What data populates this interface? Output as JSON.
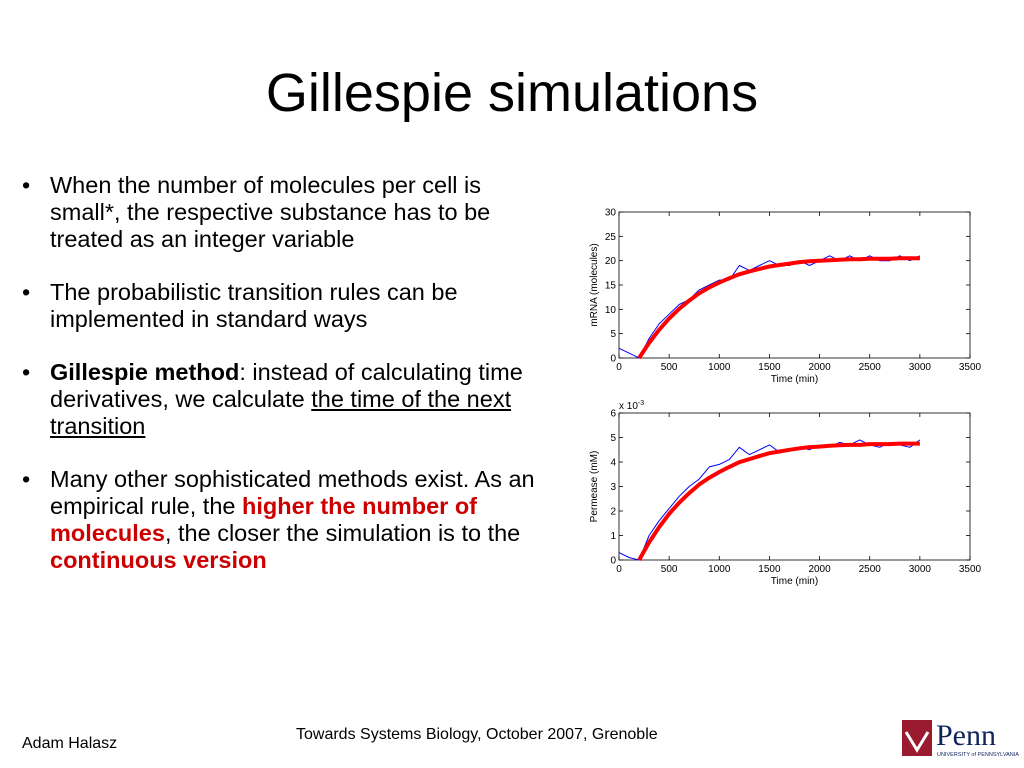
{
  "title": "Gillespie simulations",
  "bullets": [
    {
      "runs": [
        {
          "text": "When the number of molecules per cell is small*, the respective substance has to be treated as an integer variable",
          "style": "plain"
        }
      ]
    },
    {
      "runs": [
        {
          "text": "The probabilistic transition rules can be implemented in standard ways",
          "style": "plain"
        }
      ]
    },
    {
      "runs": [
        {
          "text": "Gillespie method",
          "style": "bold"
        },
        {
          "text": ": instead of calculating time derivatives, we calculate ",
          "style": "plain"
        },
        {
          "text": "the time of the next transition",
          "style": "underline"
        }
      ]
    },
    {
      "runs": [
        {
          "text": "Many other sophisticated methods exist. As an empirical rule, the ",
          "style": "plain"
        },
        {
          "text": "higher the number of molecules",
          "style": "red-bold"
        },
        {
          "text": ", the closer the simulation is to the ",
          "style": "plain"
        },
        {
          "text": "continuous version",
          "style": "red-bold"
        }
      ]
    }
  ],
  "charts": [
    {
      "type": "line",
      "xlabel": "Time (min)",
      "ylabel": "mRNA (molecules)",
      "xlim": [
        0,
        3500
      ],
      "xticks": [
        0,
        500,
        1000,
        1500,
        2000,
        2500,
        3000,
        3500
      ],
      "ylim": [
        0,
        30
      ],
      "yticks": [
        0,
        5,
        10,
        15,
        20,
        25,
        30
      ],
      "series": [
        {
          "name": null,
          "color": "#0000ff",
          "width": 1,
          "x": [
            0,
            100,
            200,
            300,
            400,
            500,
            600,
            700,
            800,
            900,
            1000,
            1100,
            1200,
            1300,
            1400,
            1500,
            1600,
            1700,
            1800,
            1900,
            2000,
            2100,
            2200,
            2300,
            2400,
            2500,
            2600,
            2700,
            2800,
            2900,
            3000
          ],
          "values": [
            2,
            1,
            0,
            4,
            7,
            9,
            11,
            12,
            14,
            15,
            16,
            16,
            19,
            18,
            19,
            20,
            19,
            19,
            20,
            19,
            20,
            21,
            20,
            21,
            20,
            21,
            20,
            20,
            21,
            20,
            21
          ]
        },
        {
          "name": null,
          "color": "#ff0000",
          "width": 4,
          "x": [
            200,
            300,
            400,
            500,
            600,
            700,
            800,
            900,
            1000,
            1100,
            1200,
            1300,
            1400,
            1500,
            1600,
            1700,
            1800,
            1900,
            2000,
            2100,
            2200,
            2300,
            2400,
            2500,
            2600,
            2700,
            2800,
            2900,
            3000
          ],
          "values": [
            0,
            3.1,
            5.8,
            8.1,
            10.1,
            11.8,
            13.3,
            14.5,
            15.5,
            16.4,
            17.2,
            17.8,
            18.3,
            18.8,
            19.1,
            19.4,
            19.7,
            19.9,
            20.0,
            20.1,
            20.2,
            20.3,
            20.3,
            20.4,
            20.4,
            20.4,
            20.5,
            20.5,
            20.5
          ]
        }
      ]
    },
    {
      "type": "line",
      "xlabel": "Time (min)",
      "ylabel": "Permease (mM)",
      "yscale_label": {
        "base": "x 10",
        "exponent": "-3"
      },
      "xlim": [
        0,
        3500
      ],
      "xticks": [
        0,
        500,
        1000,
        1500,
        2000,
        2500,
        3000,
        3500
      ],
      "ylim": [
        0,
        6
      ],
      "yticks": [
        0,
        1,
        2,
        3,
        4,
        5,
        6
      ],
      "series": [
        {
          "name": null,
          "color": "#0000ff",
          "width": 1,
          "x": [
            0,
            100,
            200,
            300,
            400,
            500,
            600,
            700,
            800,
            900,
            1000,
            1100,
            1200,
            1300,
            1400,
            1500,
            1600,
            1700,
            1800,
            1900,
            2000,
            2100,
            2200,
            2300,
            2400,
            2500,
            2600,
            2700,
            2800,
            2900,
            3000
          ],
          "values": [
            0.3,
            0.1,
            0,
            1.0,
            1.6,
            2.1,
            2.6,
            3.0,
            3.3,
            3.8,
            3.9,
            4.1,
            4.6,
            4.3,
            4.5,
            4.7,
            4.4,
            4.5,
            4.6,
            4.5,
            4.7,
            4.6,
            4.8,
            4.7,
            4.9,
            4.7,
            4.6,
            4.8,
            4.7,
            4.6,
            4.9
          ]
        },
        {
          "name": null,
          "color": "#ff0000",
          "width": 4,
          "x": [
            200,
            300,
            400,
            500,
            600,
            700,
            800,
            900,
            1000,
            1100,
            1200,
            1300,
            1400,
            1500,
            1600,
            1700,
            1800,
            1900,
            2000,
            2100,
            2200,
            2300,
            2400,
            2500,
            2600,
            2700,
            2800,
            2900,
            3000
          ],
          "values": [
            0,
            0.72,
            1.34,
            1.88,
            2.34,
            2.73,
            3.08,
            3.36,
            3.59,
            3.8,
            3.99,
            4.12,
            4.24,
            4.36,
            4.43,
            4.5,
            4.56,
            4.61,
            4.63,
            4.66,
            4.68,
            4.7,
            4.7,
            4.73,
            4.73,
            4.73,
            4.75,
            4.75,
            4.75
          ]
        }
      ]
    }
  ],
  "footer": {
    "author": "Adam Halasz",
    "event": "Towards Systems Biology, October 2007, Grenoble",
    "logo": "Penn",
    "logo_sub": "UNIVERSITY of PENNSYLVANIA"
  }
}
